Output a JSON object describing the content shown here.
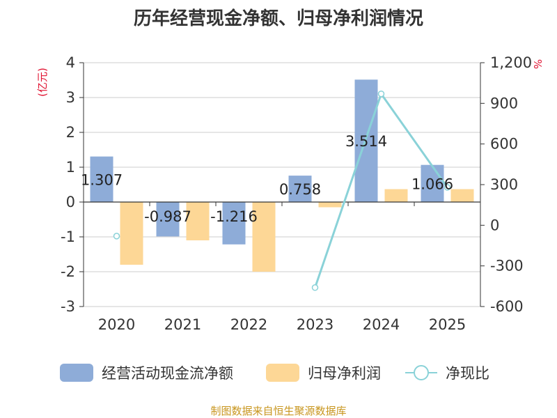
{
  "chart_data": {
    "type": "bar",
    "title": "历年经营现金净额、归母净利润情况",
    "source": "制图数据来自恒生聚源数据库",
    "categories": [
      "2020",
      "2021",
      "2022",
      "2023",
      "2024",
      "2025"
    ],
    "left_axis": {
      "unit": "(亿元)",
      "range": [
        -3,
        4
      ],
      "ticks": [
        "4",
        "3",
        "2",
        "1",
        "0",
        "-1",
        "-2",
        "-3"
      ]
    },
    "right_axis": {
      "unit": "%",
      "range": [
        -600,
        1200
      ],
      "ticks": [
        "1,200",
        "900",
        "600",
        "300",
        "0",
        "-300",
        "-600"
      ]
    },
    "series": [
      {
        "name": "经营活动现金流净额",
        "axis": "left",
        "kind": "bar",
        "color": "#8eacd8",
        "values": [
          1.307,
          -0.987,
          -1.216,
          0.758,
          3.514,
          1.066
        ],
        "labels": [
          "1.307",
          "-0.987",
          "-1.216",
          "0.758",
          "3.514",
          "1.066"
        ]
      },
      {
        "name": "归母净利润",
        "axis": "left",
        "kind": "bar",
        "color": "#fdd796",
        "values": [
          -1.8,
          -1.1,
          -2.0,
          -0.15,
          0.37,
          0.37
        ]
      },
      {
        "name": "净现比",
        "axis": "right",
        "kind": "line",
        "color": "#8ad2d8",
        "values": [
          null,
          null,
          null,
          -460,
          970,
          280
        ],
        "markers": [
          -80,
          null,
          null,
          -460,
          970,
          280
        ]
      }
    ],
    "grid": true,
    "legend": "bottom"
  }
}
